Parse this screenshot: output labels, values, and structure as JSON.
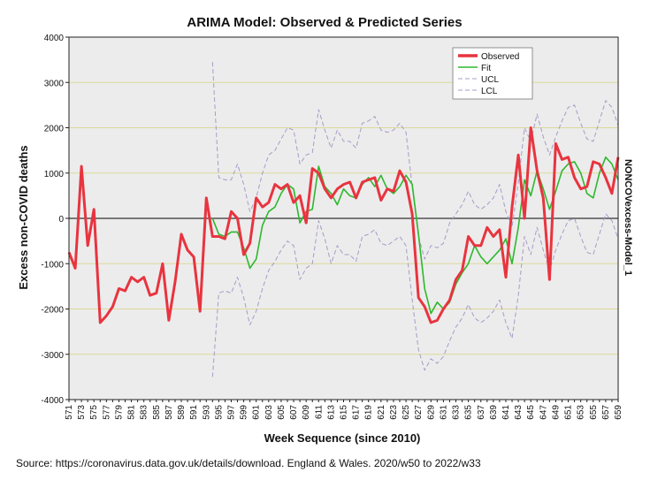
{
  "chart_data": {
    "type": "line",
    "title": "ARIMA Model: Observed & Predicted Series",
    "xlabel": "Week Sequence (since 2010)",
    "ylabel": "Excess non-COVID deaths",
    "right_label": "NONCOVexcess-Model_1",
    "xlim": [
      571,
      659
    ],
    "ylim": [
      -4000,
      4000
    ],
    "y_ticks": [
      -4000,
      -3000,
      -2000,
      -1000,
      0,
      1000,
      2000,
      3000,
      4000
    ],
    "x_ticks": [
      571,
      573,
      575,
      577,
      579,
      581,
      583,
      585,
      587,
      589,
      591,
      593,
      595,
      597,
      599,
      601,
      603,
      605,
      607,
      609,
      611,
      613,
      615,
      617,
      619,
      621,
      623,
      625,
      627,
      629,
      631,
      633,
      635,
      637,
      639,
      641,
      643,
      645,
      647,
      649,
      651,
      653,
      655,
      657,
      659
    ],
    "grid": "horizontal",
    "reference_line": 0,
    "legend_position": "top-right",
    "background": "#ececec",
    "series": [
      {
        "name": "Observed",
        "color": "#e8343f",
        "dashed": false,
        "x": [
          571,
          572,
          573,
          574,
          575,
          576,
          577,
          578,
          579,
          580,
          581,
          582,
          583,
          584,
          585,
          586,
          587,
          588,
          589,
          590,
          591,
          592,
          593,
          594,
          595,
          596,
          597,
          598,
          599,
          600,
          601,
          602,
          603,
          604,
          605,
          606,
          607,
          608,
          609,
          610,
          611,
          612,
          613,
          614,
          615,
          616,
          617,
          618,
          619,
          620,
          621,
          622,
          623,
          624,
          625,
          626,
          627,
          628,
          629,
          630,
          631,
          632,
          633,
          634,
          635,
          636,
          637,
          638,
          639,
          640,
          641,
          642,
          643,
          644,
          645,
          646,
          647,
          648,
          649,
          650,
          651,
          652,
          653,
          654,
          655,
          656,
          657,
          658,
          659
        ],
        "values": [
          -750,
          -1100,
          1150,
          -600,
          200,
          -2300,
          -2150,
          -1950,
          -1550,
          -1600,
          -1300,
          -1400,
          -1300,
          -1700,
          -1650,
          -1000,
          -2250,
          -1400,
          -350,
          -700,
          -850,
          -2050,
          450,
          -400,
          -400,
          -450,
          150,
          0,
          -800,
          -550,
          450,
          250,
          350,
          750,
          650,
          750,
          350,
          500,
          -100,
          1100,
          1000,
          650,
          450,
          650,
          750,
          800,
          450,
          800,
          850,
          900,
          400,
          650,
          600,
          1050,
          800,
          100,
          -1750,
          -1950,
          -2300,
          -2250,
          -2000,
          -1800,
          -1350,
          -1150,
          -400,
          -600,
          -600,
          -200,
          -400,
          -250,
          -1300,
          250,
          1400,
          0,
          2000,
          1050,
          450,
          -1350,
          1650,
          1300,
          1350,
          900,
          650,
          700,
          1250,
          1200,
          900,
          550,
          1350
        ]
      },
      {
        "name": "Fit",
        "color": "#2eb82e",
        "dashed": false,
        "x": [
          594,
          595,
          596,
          597,
          598,
          599,
          600,
          601,
          602,
          603,
          604,
          605,
          606,
          607,
          608,
          609,
          610,
          611,
          612,
          613,
          614,
          615,
          616,
          617,
          618,
          619,
          620,
          621,
          622,
          623,
          624,
          625,
          626,
          627,
          628,
          629,
          630,
          631,
          632,
          633,
          634,
          635,
          636,
          637,
          638,
          639,
          640,
          641,
          642,
          643,
          644,
          645,
          646,
          647,
          648,
          649,
          650,
          651,
          652,
          653,
          654,
          655,
          656,
          657,
          658,
          659
        ],
        "values": [
          0,
          -350,
          -400,
          -300,
          -300,
          -650,
          -1100,
          -900,
          -150,
          150,
          250,
          550,
          750,
          650,
          -100,
          150,
          200,
          1150,
          700,
          550,
          300,
          650,
          500,
          450,
          750,
          900,
          700,
          950,
          650,
          550,
          700,
          950,
          750,
          -350,
          -1550,
          -2100,
          -1850,
          -2000,
          -1850,
          -1450,
          -1200,
          -1000,
          -600,
          -850,
          -1000,
          -850,
          -700,
          -450,
          -1000,
          -200,
          850,
          500,
          1050,
          650,
          200,
          600,
          1050,
          1200,
          1250,
          1000,
          550,
          450,
          1000,
          1350,
          1200,
          850
        ]
      },
      {
        "name": "UCL",
        "color": "#a89ac8",
        "dashed": true,
        "x": [
          594,
          595,
          596,
          597,
          598,
          599,
          600,
          601,
          602,
          603,
          604,
          605,
          606,
          607,
          608,
          609,
          610,
          611,
          612,
          613,
          614,
          615,
          616,
          617,
          618,
          619,
          620,
          621,
          622,
          623,
          624,
          625,
          626,
          627,
          628,
          629,
          630,
          631,
          632,
          633,
          634,
          635,
          636,
          637,
          638,
          639,
          640,
          641,
          642,
          643,
          644,
          645,
          646,
          647,
          648,
          649,
          650,
          651,
          652,
          653,
          654,
          655,
          656,
          657,
          658,
          659
        ],
        "values": [
          3450,
          900,
          850,
          850,
          1200,
          750,
          150,
          450,
          1000,
          1400,
          1500,
          1750,
          2000,
          1950,
          1200,
          1400,
          1450,
          2400,
          1950,
          1550,
          1950,
          1700,
          1700,
          1550,
          2100,
          2150,
          2250,
          1950,
          1900,
          1950,
          2100,
          1900,
          700,
          -400,
          -900,
          -600,
          -650,
          -550,
          -100,
          100,
          300,
          600,
          300,
          200,
          300,
          450,
          750,
          150,
          -200,
          800,
          2000,
          1700,
          2300,
          1800,
          1400,
          1800,
          2150,
          2450,
          2500,
          2100,
          1750,
          1700,
          2150,
          2600,
          2450,
          2050
        ]
      },
      {
        "name": "LCL",
        "color": "#a89ac8",
        "dashed": true,
        "x": [
          594,
          595,
          596,
          597,
          598,
          599,
          600,
          601,
          602,
          603,
          604,
          605,
          606,
          607,
          608,
          609,
          610,
          611,
          612,
          613,
          614,
          615,
          616,
          617,
          618,
          619,
          620,
          621,
          622,
          623,
          624,
          625,
          626,
          627,
          628,
          629,
          630,
          631,
          632,
          633,
          634,
          635,
          636,
          637,
          638,
          639,
          640,
          641,
          642,
          643,
          644,
          645,
          646,
          647,
          648,
          649,
          650,
          651,
          652,
          653,
          654,
          655,
          656,
          657,
          658,
          659
        ],
        "values": [
          -3500,
          -1650,
          -1600,
          -1650,
          -1300,
          -1750,
          -2350,
          -2050,
          -1550,
          -1150,
          -950,
          -700,
          -500,
          -600,
          -1350,
          -1100,
          -1000,
          -50,
          -450,
          -1000,
          -600,
          -800,
          -800,
          -950,
          -400,
          -350,
          -250,
          -550,
          -600,
          -500,
          -400,
          -600,
          -1800,
          -2900,
          -3350,
          -3100,
          -3200,
          -3050,
          -2700,
          -2400,
          -2200,
          -1900,
          -2200,
          -2300,
          -2200,
          -2050,
          -1800,
          -2300,
          -2650,
          -1700,
          -400,
          -800,
          -200,
          -700,
          -1150,
          -700,
          -350,
          -50,
          0,
          -400,
          -750,
          -800,
          -350,
          100,
          -50,
          -450
        ]
      }
    ]
  },
  "source_note": "Source: https://coronavirus.data.gov.uk/details/download. England & Wales. 2020/w50 to 2022/w33"
}
